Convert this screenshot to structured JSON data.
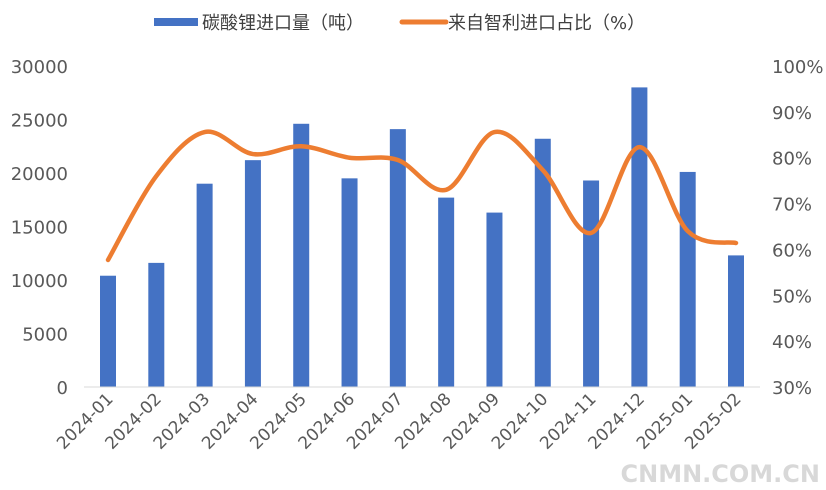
{
  "chart_data": {
    "type": "bar+line",
    "categories": [
      "2024-01",
      "2024-02",
      "2024-03",
      "2024-04",
      "2024-05",
      "2024-06",
      "2024-07",
      "2024-08",
      "2024-09",
      "2024-10",
      "2024-11",
      "2024-12",
      "2025-01",
      "2025-02"
    ],
    "series": [
      {
        "name": "碳酸锂进口量（吨）",
        "type": "bar",
        "axis": "left",
        "color": "#4472C4",
        "values": [
          10400,
          11600,
          19000,
          21200,
          24600,
          19500,
          24100,
          17700,
          16300,
          23200,
          19300,
          28000,
          20100,
          12300
        ]
      },
      {
        "name": "来自智利进口占比（%）",
        "type": "line",
        "axis": "right",
        "smooth": true,
        "color": "#ED7D31",
        "values": [
          57.7,
          76,
          85.6,
          80.8,
          82.5,
          80,
          79.5,
          73,
          85.6,
          77.3,
          63.6,
          82.3,
          64,
          61.4
        ]
      }
    ],
    "left_axis": {
      "range": [
        0,
        30000
      ],
      "ticks": [
        "0",
        "5000",
        "10000",
        "15000",
        "20000",
        "25000",
        "30000"
      ]
    },
    "right_axis": {
      "range": [
        30,
        100
      ],
      "ticks": [
        "30%",
        "40%",
        "50%",
        "60%",
        "70%",
        "80%",
        "90%",
        "100%"
      ]
    },
    "grid": false,
    "legend_placement": "top"
  },
  "watermark": "CNMN.COM.CN"
}
